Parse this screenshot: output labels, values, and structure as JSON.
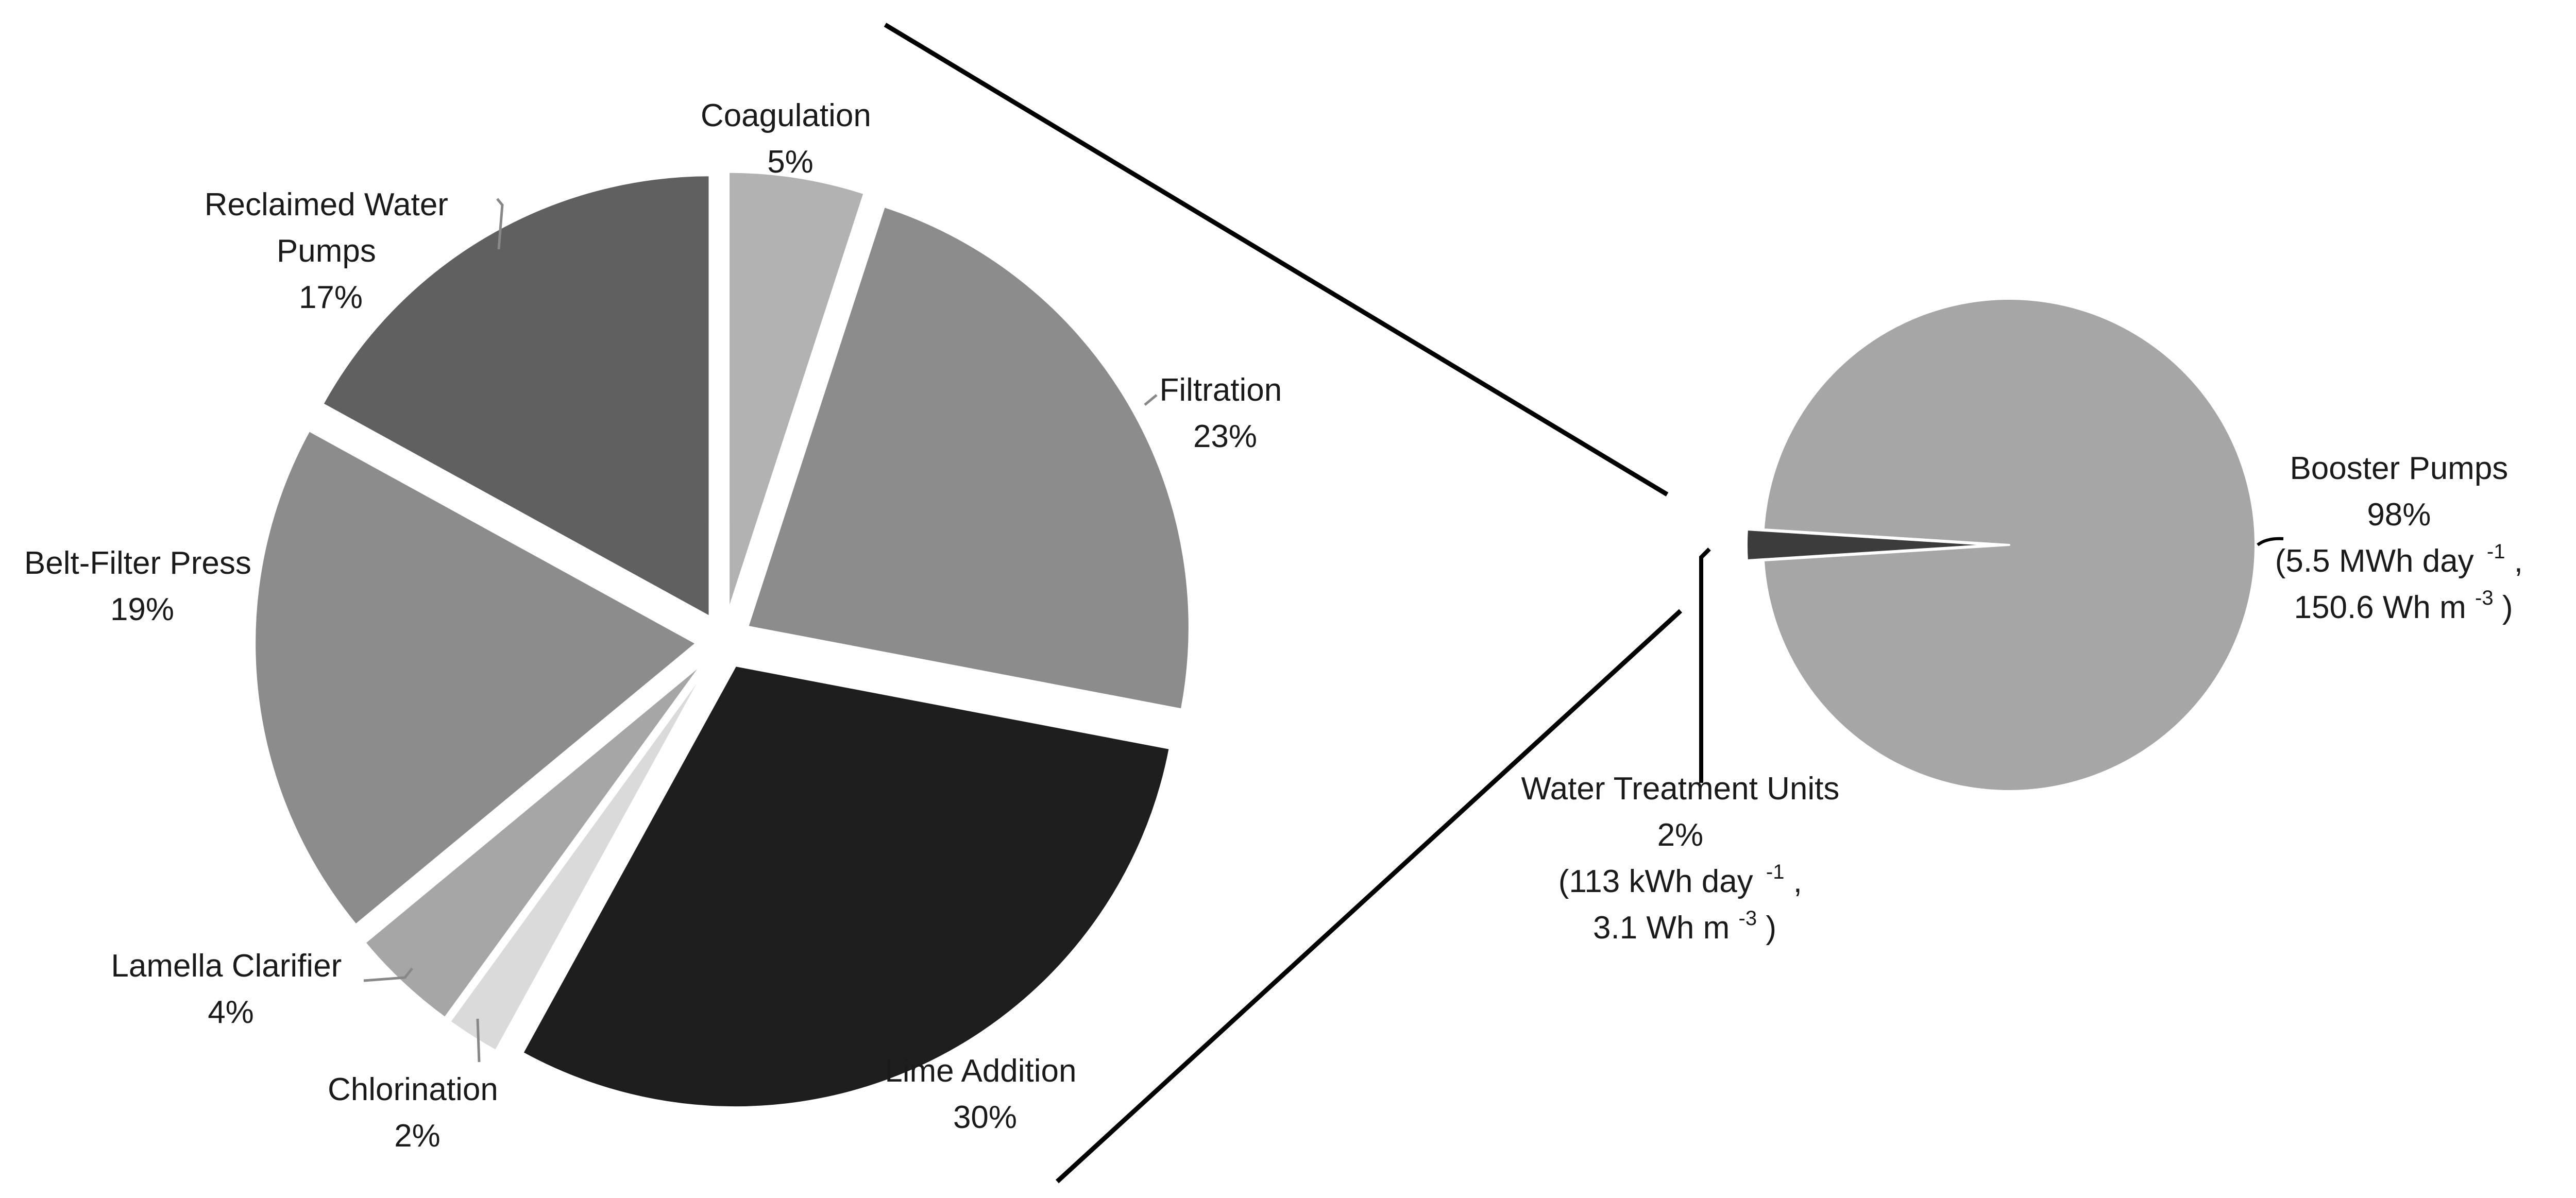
{
  "chart_data": [
    {
      "type": "pie",
      "title": "",
      "exploded": true,
      "start_angle": "top",
      "slices": [
        {
          "label": "Coagulation",
          "percent_label": "5%",
          "value": 5,
          "color": "#b2b2b2"
        },
        {
          "label": "Filtration",
          "percent_label": "23%",
          "value": 23,
          "color": "#8c8c8c"
        },
        {
          "label": "Lime Addition",
          "percent_label": "30%",
          "value": 30,
          "color": "#1e1e1e"
        },
        {
          "label": "Chlorination",
          "percent_label": "2%",
          "value": 2,
          "color": "#dadada"
        },
        {
          "label": "Lamella Clarifier",
          "percent_label": "4%",
          "value": 4,
          "color": "#a6a6a6"
        },
        {
          "label": "Belt-Filter Press",
          "percent_label": "19%",
          "value": 19,
          "color": "#8c8c8c"
        },
        {
          "label": "Reclaimed Water Pumps",
          "label_lines": [
            "Reclaimed Water",
            "Pumps"
          ],
          "percent_label": "17%",
          "value": 17,
          "color": "#606060"
        }
      ]
    },
    {
      "type": "pie",
      "title": "",
      "slices": [
        {
          "label": "Booster Pumps",
          "percent_label": "98%",
          "value": 98,
          "color": "#a6a6a6",
          "detail_lines": [
            {
              "value": "(5.5 MWh day",
              "sup": "-1",
              "tail": ","
            },
            {
              "value": "150.6 Wh m",
              "sup": "-3",
              "tail": ")"
            }
          ]
        },
        {
          "label": "Water Treatment Units",
          "percent_label": "2%",
          "value": 2,
          "color": "#3c3c3c",
          "detail_lines": [
            {
              "value": "(113 kWh day",
              "sup": "-1",
              "tail": ","
            },
            {
              "value": "3.1 Wh m",
              "sup": "-3",
              "tail": ")"
            }
          ]
        }
      ]
    }
  ]
}
